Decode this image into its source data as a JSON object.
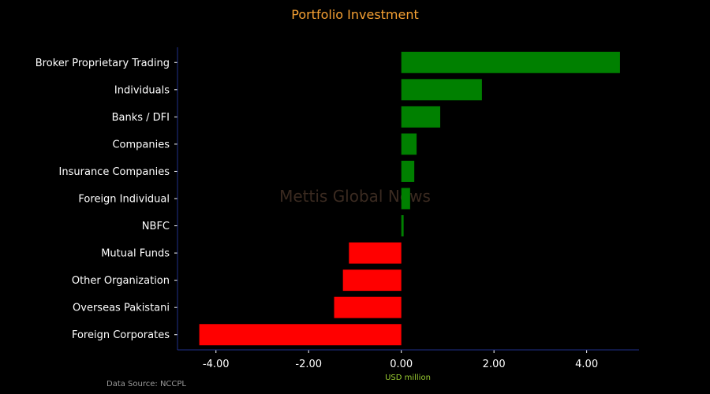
{
  "chart_data": {
    "type": "bar",
    "orientation": "horizontal",
    "title": "Portfolio Investment",
    "xlabel": "USD million",
    "ylabel": "",
    "source": "Data Source: NCCPL",
    "watermark": "Mettis Global News",
    "categories": [
      "Broker Proprietary Trading",
      "Individuals",
      "Banks / DFI",
      "Companies",
      "Insurance Companies",
      "Foreign Individual",
      "NBFC",
      "Mutual Funds",
      "Other Organization",
      "Overseas Pakistani",
      "Foreign Corporates"
    ],
    "values": [
      4.72,
      1.74,
      0.84,
      0.33,
      0.28,
      0.19,
      0.05,
      -1.13,
      -1.26,
      -1.45,
      -4.36
    ],
    "xlim": [
      -4.83,
      5.13
    ],
    "xticks": [
      -4,
      -2,
      0,
      2,
      4
    ],
    "xtick_labels": [
      "-4.00",
      "-2.00",
      "0.00",
      "2.00",
      "4.00"
    ],
    "grid": false,
    "colors": {
      "positive": "#008000",
      "negative": "#ff0000",
      "title": "#f5a033",
      "axis": "#1f2f8a",
      "xlabel": "#9acd32",
      "text": "#ffffff",
      "background": "#000000"
    }
  }
}
